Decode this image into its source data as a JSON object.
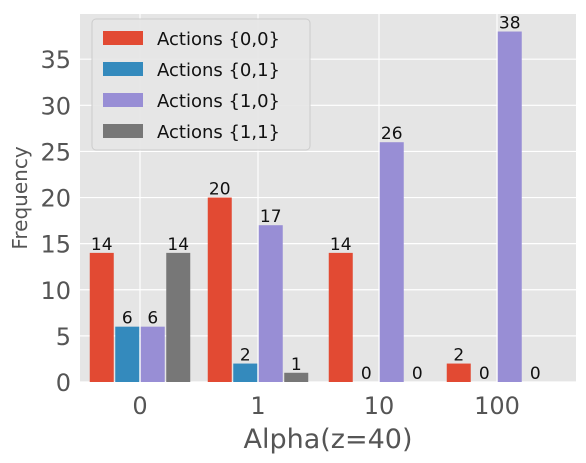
{
  "chart_data": {
    "type": "bar",
    "xlabel": "Alpha(z=40)",
    "ylabel": "Frequency",
    "categories": [
      "0",
      "1",
      "10",
      "100"
    ],
    "series": [
      {
        "name": "Actions {0,0}",
        "color": "#E24A33",
        "values": [
          14,
          20,
          14,
          2
        ]
      },
      {
        "name": "Actions {0,1}",
        "color": "#348ABD",
        "values": [
          6,
          2,
          0,
          0
        ]
      },
      {
        "name": "Actions {1,0}",
        "color": "#988ED5",
        "values": [
          6,
          17,
          26,
          38
        ]
      },
      {
        "name": "Actions {1,1}",
        "color": "#777777",
        "values": [
          14,
          1,
          0,
          0
        ]
      }
    ],
    "ylim": [
      0,
      39.9
    ],
    "yticks": [
      0,
      5,
      10,
      15,
      20,
      25,
      30,
      35
    ],
    "grid": true,
    "legend_position": "top-left",
    "background_color": "#E5E5E5"
  }
}
